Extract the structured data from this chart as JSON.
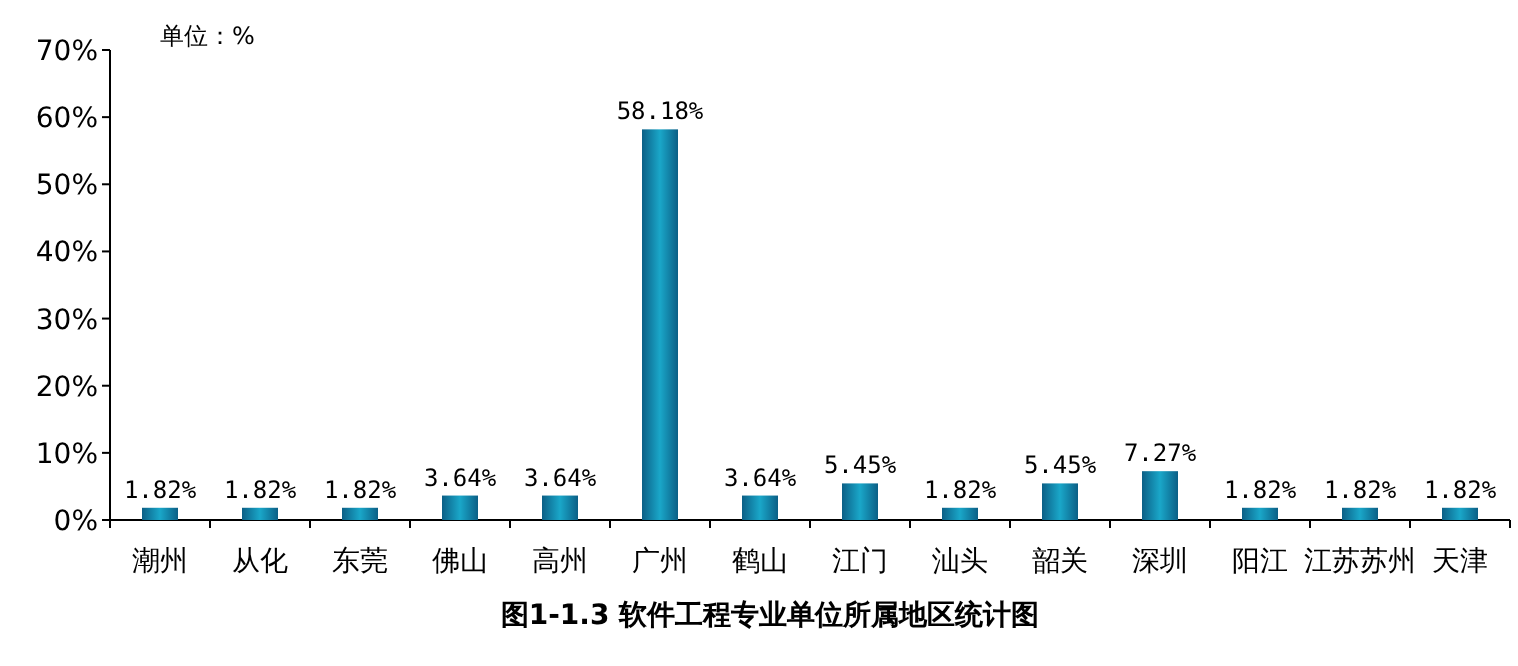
{
  "chart_data": {
    "type": "bar",
    "title": "图1-1.3 软件工程专业单位所属地区统计图",
    "annotations": [
      "单位：%"
    ],
    "categories": [
      "潮州",
      "从化",
      "东莞",
      "佛山",
      "高州",
      "广州",
      "鹤山",
      "江门",
      "汕头",
      "韶关",
      "深圳",
      "阳江",
      "江苏苏州",
      "天津"
    ],
    "values": [
      1.82,
      1.82,
      1.82,
      3.64,
      3.64,
      58.18,
      3.64,
      5.45,
      1.82,
      5.45,
      7.27,
      1.82,
      1.82,
      1.82
    ],
    "value_labels": [
      "1.82%",
      "1.82%",
      "1.82%",
      "3.64%",
      "3.64%",
      "58.18%",
      "3.64%",
      "5.45%",
      "1.82%",
      "5.45%",
      "7.27%",
      "1.82%",
      "1.82%",
      "1.82%"
    ],
    "color": "#1aa7c9",
    "ylim": [
      0,
      70
    ],
    "yticks": [
      {
        "value": 0,
        "label": "0%"
      },
      {
        "value": 10,
        "label": "10%"
      },
      {
        "value": 20,
        "label": "20%"
      },
      {
        "value": 30,
        "label": "30%"
      },
      {
        "value": 40,
        "label": "40%"
      },
      {
        "value": 50,
        "label": "50%"
      },
      {
        "value": 60,
        "label": "60%"
      },
      {
        "value": 70,
        "label": "70%"
      }
    ]
  }
}
